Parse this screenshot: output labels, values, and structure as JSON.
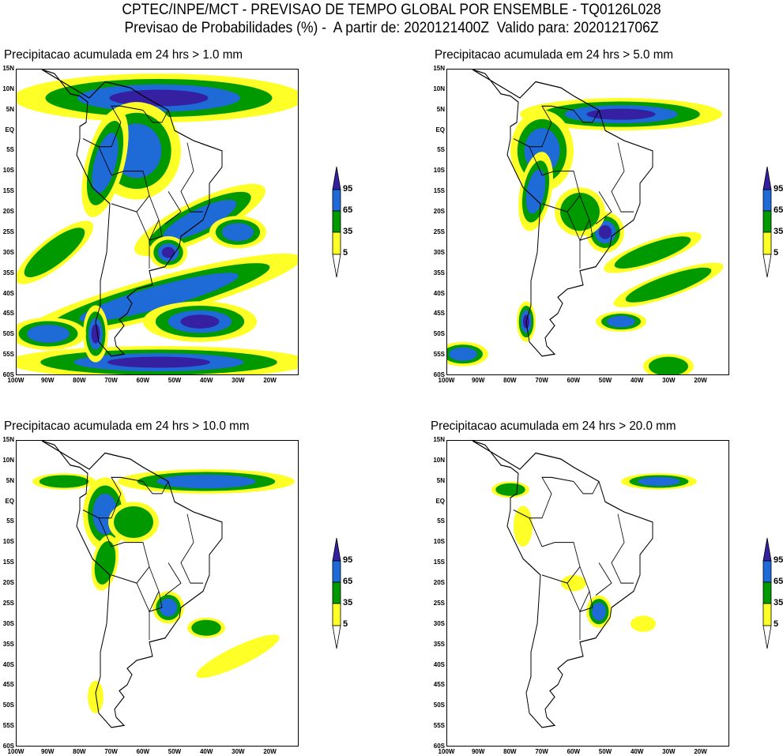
{
  "header": {
    "line1": "CPTEC/INPE/MCT - PREVISAO DE TEMPO GLOBAL POR ENSEMBLE - TQ0126L028",
    "line2": "Previsao de Probabilidades (%) -  A partir de: 2020121400Z  Valido para: 2020121706Z"
  },
  "axes": {
    "lat_labels": [
      "15N",
      "10N",
      "5N",
      "EQ",
      "5S",
      "10S",
      "15S",
      "20S",
      "25S",
      "30S",
      "35S",
      "40S",
      "45S",
      "50S",
      "55S",
      "60S"
    ],
    "lon_labels": [
      "100W",
      "90W",
      "80W",
      "70W",
      "60W",
      "50W",
      "40W",
      "30W",
      "20W"
    ],
    "lon_range": [
      -100,
      -11
    ],
    "lat_range": [
      -60,
      15
    ]
  },
  "colorbar": {
    "labels": [
      "95",
      "65",
      "35",
      "5"
    ],
    "colors": [
      "#ffff28",
      "#009a00",
      "#1e6ad6",
      "#3420a0"
    ]
  },
  "chart_data": [
    {
      "type": "heatmap",
      "title": "Precipitacao acumulada em 24 hrs > 1.0 mm",
      "regions": [
        [
          -55,
          8,
          46,
          6,
          4,
          0
        ],
        [
          -62,
          -5,
          14,
          12,
          3,
          0
        ],
        [
          -72,
          -8,
          6,
          14,
          3,
          20
        ],
        [
          -42,
          -22,
          22,
          5,
          3,
          -20
        ],
        [
          -30,
          -25,
          9,
          4,
          3,
          0
        ],
        [
          -55,
          -41,
          46,
          5,
          3,
          -12
        ],
        [
          -42,
          -47,
          18,
          5,
          4,
          0
        ],
        [
          -55,
          -57,
          48,
          4,
          4,
          0
        ],
        [
          -75,
          -50,
          4,
          7,
          4,
          0
        ],
        [
          -88,
          -30,
          14,
          4,
          2,
          -30
        ],
        [
          -52,
          -30,
          6,
          4,
          4,
          0
        ],
        [
          -90,
          -50,
          12,
          4,
          3,
          0
        ]
      ]
    },
    {
      "type": "heatmap",
      "title": "Precipitacao acumulada em 24 hrs > 5.0 mm",
      "regions": [
        [
          -45,
          4,
          32,
          4,
          4,
          0
        ],
        [
          -70,
          -5,
          10,
          10,
          3,
          0
        ],
        [
          -72,
          -15,
          5,
          10,
          3,
          15
        ],
        [
          -50,
          -25,
          6,
          5,
          4,
          0
        ],
        [
          -35,
          -30,
          16,
          3,
          2,
          -15
        ],
        [
          -30,
          -38,
          18,
          3,
          2,
          -15
        ],
        [
          -75,
          -47,
          3,
          5,
          4,
          0
        ],
        [
          -45,
          -47,
          8,
          2.5,
          3,
          0
        ],
        [
          -95,
          -55,
          8,
          3,
          3,
          0
        ],
        [
          -30,
          -58,
          8,
          3,
          2,
          0
        ],
        [
          -58,
          -20,
          8,
          6,
          2,
          0
        ]
      ]
    },
    {
      "type": "heatmap",
      "title": "Precipitacao acumulada em 24 hrs > 10.0 mm",
      "regions": [
        [
          -40,
          5,
          28,
          3,
          3,
          0
        ],
        [
          -72,
          -3,
          7,
          9,
          3,
          0
        ],
        [
          -72,
          -15,
          4,
          7,
          2,
          15
        ],
        [
          -52,
          -26,
          5,
          4,
          3,
          0
        ],
        [
          -40,
          -31,
          6,
          2.5,
          2,
          0
        ],
        [
          -30,
          -38,
          14,
          2.5,
          1,
          -20
        ],
        [
          -63,
          -5,
          8,
          5,
          2,
          0
        ],
        [
          -85,
          5,
          10,
          2,
          2,
          0
        ],
        [
          -75,
          -48,
          2.5,
          4,
          1,
          0
        ]
      ]
    },
    {
      "type": "heatmap",
      "title": "Precipitacao acumulada em 24 hrs > 20.0 mm",
      "regions": [
        [
          -33,
          5,
          12,
          2,
          3,
          0
        ],
        [
          -52,
          -27,
          4,
          4,
          3,
          0
        ],
        [
          -76,
          -6,
          3,
          5,
          1,
          0
        ],
        [
          -60,
          -20,
          4,
          2,
          1,
          0
        ],
        [
          -38,
          -30,
          4,
          2,
          1,
          0
        ],
        [
          -80,
          3,
          6,
          2,
          2,
          0
        ]
      ]
    }
  ]
}
